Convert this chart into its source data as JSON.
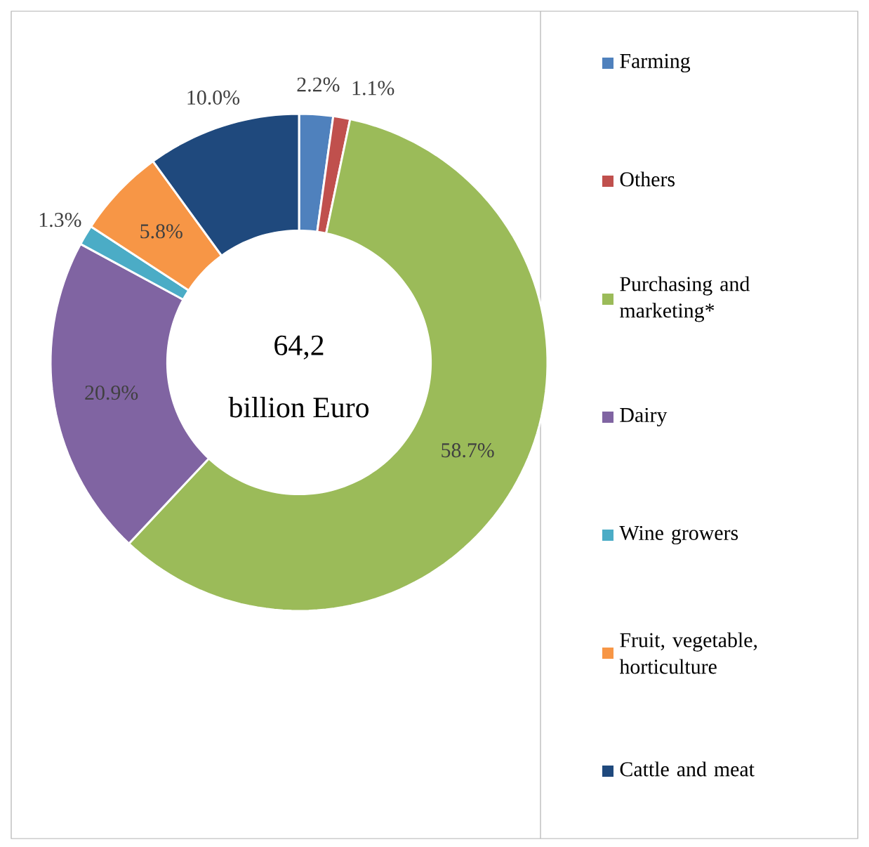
{
  "chart_data": {
    "type": "donut",
    "categories": [
      "Farming",
      "Others",
      "Purchasing and marketing*",
      "Dairy",
      "Wine growers",
      "Fruit, vegetable, horticulture",
      "Cattle and meat"
    ],
    "values": [
      2.2,
      1.1,
      58.7,
      20.9,
      1.3,
      5.8,
      10.0
    ],
    "value_labels": [
      "2.2%",
      "1.1%",
      "58.7%",
      "20.9%",
      "1.3%",
      "5.8%",
      "10.0%"
    ],
    "colors": [
      "#4f81bd",
      "#c0504d",
      "#9bbb59",
      "#8064a2",
      "#4bacc6",
      "#f79646",
      "#1f497d"
    ],
    "annotations": [
      "64,2",
      "billion Euro"
    ],
    "legend": "right"
  }
}
